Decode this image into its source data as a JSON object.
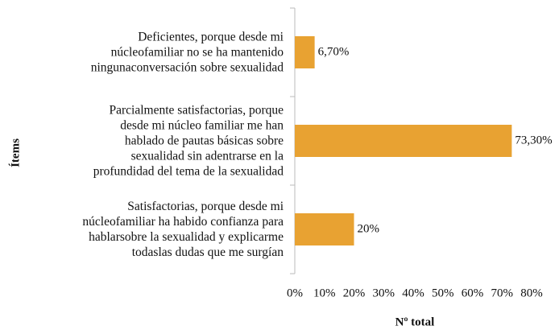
{
  "chart_data": {
    "type": "barh",
    "categories": [
      "Deficientes, porque desde mi\nnúcleofamiliar no se ha mantenido\nningunaconversación sobre sexualidad",
      "Parcialmente satisfactorias, porque\ndesde mi núcleo familiar me han\nhablado de pautas básicas sobre\nsexualidad sin adentrarse en la\nprofundidad del tema de la sexualidad",
      "Satisfactorias, porque desde mi\nnúcleofamiliar ha habido confianza para\nhablarsobre la sexualidad y explicarme\ntodaslas dudas que me surgían"
    ],
    "values": [
      6.7,
      73.3,
      20
    ],
    "value_labels": [
      "6,70%",
      "73,30%",
      "20%"
    ],
    "color": "#e8a232",
    "xlim": [
      0,
      80
    ],
    "xticks": [
      {
        "value": 0,
        "label": "0%"
      },
      {
        "value": 10,
        "label": "10%"
      },
      {
        "value": 20,
        "label": "20%"
      },
      {
        "value": 30,
        "label": "30%"
      },
      {
        "value": 40,
        "label": "40%"
      },
      {
        "value": 50,
        "label": "50%"
      },
      {
        "value": 60,
        "label": "60%"
      },
      {
        "value": 70,
        "label": "70%"
      },
      {
        "value": 80,
        "label": "80%"
      }
    ],
    "xlabel": "Nº total",
    "ylabel": "Ítems"
  }
}
